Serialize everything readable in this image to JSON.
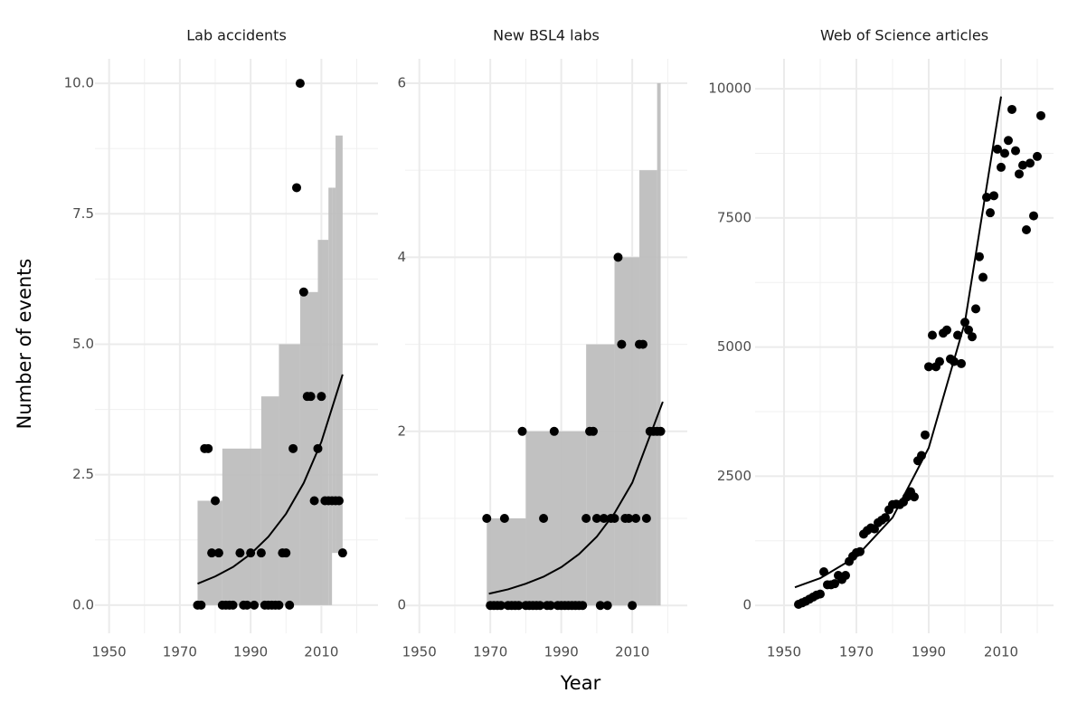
{
  "axis_labels": {
    "y": "Number of events",
    "x": "Year"
  },
  "chart_data": [
    {
      "type": "scatter",
      "title": "Lab accidents",
      "x": [
        1975,
        1976,
        1977,
        1978,
        1979,
        1980,
        1981,
        1982,
        1983,
        1984,
        1985,
        1987,
        1988,
        1989,
        1990,
        1991,
        1993,
        1994,
        1995,
        1996,
        1997,
        1998,
        1999,
        2000,
        2001,
        2002,
        2003,
        2004,
        2005,
        2006,
        2007,
        2008,
        2009,
        2010,
        2011,
        2012,
        2013,
        2014,
        2015,
        2016
      ],
      "values": [
        0,
        0,
        3,
        3,
        1,
        2,
        1,
        0,
        0,
        0,
        0,
        1,
        0,
        0,
        1,
        0,
        1,
        0,
        0,
        0,
        0,
        0,
        1,
        1,
        0,
        3,
        8,
        10,
        6,
        4,
        4,
        2,
        3,
        4,
        2,
        2,
        2,
        2,
        2,
        1
      ],
      "fit": {
        "x": [
          1975,
          1980,
          1985,
          1990,
          1995,
          2000,
          2005,
          2010,
          2016
        ],
        "values": [
          0.41,
          0.55,
          0.73,
          0.98,
          1.31,
          1.75,
          2.34,
          3.13,
          4.42
        ]
      },
      "band": {
        "x": [
          1975,
          1982,
          1993,
          1998,
          2004,
          2009,
          2012,
          2013,
          2014
        ],
        "upper": [
          2,
          3,
          4,
          5,
          6,
          7,
          8,
          8,
          9
        ],
        "lower": [
          0,
          0,
          0,
          0,
          0,
          0,
          0,
          1,
          1
        ],
        "x_end": 2016
      },
      "xlim": [
        1946,
        2026
      ],
      "ylim": [
        -0.54,
        10.47
      ],
      "xticks": [
        1950,
        1970,
        1990,
        2010
      ],
      "x_minor_ticks": [
        1960,
        1980,
        2000,
        2020
      ],
      "yticks": [
        {
          "value": 0,
          "label": "0.0"
        },
        {
          "value": 2.5,
          "label": "2.5"
        },
        {
          "value": 5,
          "label": "5.0"
        },
        {
          "value": 7.5,
          "label": "7.5"
        },
        {
          "value": 10,
          "label": "10.0"
        }
      ],
      "y_minor_ticks": [
        1.25,
        3.75,
        6.25,
        8.75
      ],
      "color": "#000000",
      "band_color": "#bebebe",
      "grid": true
    },
    {
      "type": "scatter",
      "title": "New BSL4 labs",
      "x": [
        1969,
        1970,
        1971,
        1972,
        1973,
        1974,
        1975,
        1976,
        1977,
        1978,
        1979,
        1980,
        1981,
        1982,
        1983,
        1984,
        1985,
        1986,
        1987,
        1988,
        1989,
        1990,
        1991,
        1992,
        1993,
        1994,
        1995,
        1996,
        1997,
        1998,
        1999,
        2000,
        2001,
        2002,
        2003,
        2004,
        2005,
        2006,
        2007,
        2008,
        2009,
        2010,
        2011,
        2012,
        2013,
        2014,
        2015,
        2016,
        2017,
        2018
      ],
      "values": [
        1,
        0,
        0,
        0,
        0,
        1,
        0,
        0,
        0,
        0,
        2,
        0,
        0,
        0,
        0,
        0,
        1,
        0,
        0,
        2,
        0,
        0,
        0,
        0,
        0,
        0,
        0,
        0,
        1,
        2,
        2,
        1,
        0,
        1,
        0,
        1,
        1,
        4,
        3,
        1,
        1,
        0,
        1,
        3,
        3,
        1,
        2,
        2,
        2,
        2
      ],
      "fit": {
        "x": [
          1969.6,
          1975,
          1980,
          1985,
          1990,
          1995,
          2000,
          2005,
          2010,
          2018.6
        ],
        "values": [
          0.135,
          0.185,
          0.25,
          0.33,
          0.44,
          0.59,
          0.79,
          1.06,
          1.41,
          2.34
        ]
      },
      "band": {
        "x": [
          1969,
          1980,
          1997,
          2005,
          2012,
          2017
        ],
        "upper": [
          1,
          2,
          3,
          4,
          5,
          6
        ],
        "lower": [
          0,
          0,
          0,
          0,
          0,
          0
        ],
        "x_end": 2018
      },
      "xlim": [
        1946,
        2025.5
      ],
      "ylim": [
        -0.32,
        6.28
      ],
      "xticks": [
        1950,
        1970,
        1990,
        2010
      ],
      "x_minor_ticks": [
        1960,
        1980,
        2000,
        2020
      ],
      "yticks": [
        0,
        2,
        4,
        6
      ],
      "y_minor_ticks": [
        1,
        3,
        5
      ],
      "color": "#000000",
      "band_color": "#bebebe",
      "grid": true
    },
    {
      "type": "scatter",
      "title": "Web of Science articles",
      "x": [
        1954,
        1955,
        1956,
        1957,
        1958,
        1959,
        1960,
        1961,
        1962,
        1963,
        1964,
        1965,
        1966,
        1967,
        1968,
        1969,
        1970,
        1971,
        1972,
        1973,
        1974,
        1975,
        1976,
        1977,
        1978,
        1979,
        1980,
        1981,
        1982,
        1983,
        1984,
        1985,
        1986,
        1987,
        1988,
        1989,
        1990,
        1991,
        1992,
        1993,
        1994,
        1995,
        1996,
        1997,
        1998,
        1999,
        2000,
        2001,
        2002,
        2003,
        2004,
        2005,
        2006,
        2007,
        2008,
        2009,
        2010,
        2011,
        2012,
        2013,
        2014,
        2015,
        2016,
        2017,
        2018,
        2019,
        2020,
        2021
      ],
      "values": [
        20,
        50,
        80,
        120,
        160,
        200,
        220,
        650,
        400,
        400,
        420,
        580,
        500,
        580,
        850,
        950,
        1020,
        1040,
        1380,
        1450,
        1500,
        1480,
        1600,
        1650,
        1700,
        1850,
        1950,
        1960,
        1950,
        2000,
        2100,
        2200,
        2100,
        2800,
        2900,
        3300,
        4620,
        5230,
        4620,
        4720,
        5270,
        5330,
        4770,
        4720,
        5230,
        4680,
        5480,
        5330,
        5200,
        5740,
        6750,
        6350,
        7900,
        7600,
        7930,
        8830,
        8480,
        8750,
        9000,
        9600,
        8800,
        8350,
        8520,
        7270,
        8560,
        7540,
        8690,
        9480
      ],
      "fit": {
        "x": [
          1953,
          1960,
          1970,
          1980,
          1990,
          2000,
          2010
        ],
        "values": [
          350,
          526,
          945,
          1700,
          3050,
          5480,
          9850
        ]
      },
      "xlim": [
        1942,
        2024.5
      ],
      "ylim": [
        -540,
        10580
      ],
      "xticks": [
        1950,
        1970,
        1990,
        2010
      ],
      "x_minor_ticks": [
        1960,
        1980,
        2000,
        2020
      ],
      "yticks": [
        0,
        2500,
        5000,
        7500,
        10000
      ],
      "y_minor_ticks": [
        1250,
        3750,
        6250,
        8750
      ],
      "color": "#000000",
      "grid": true
    }
  ]
}
